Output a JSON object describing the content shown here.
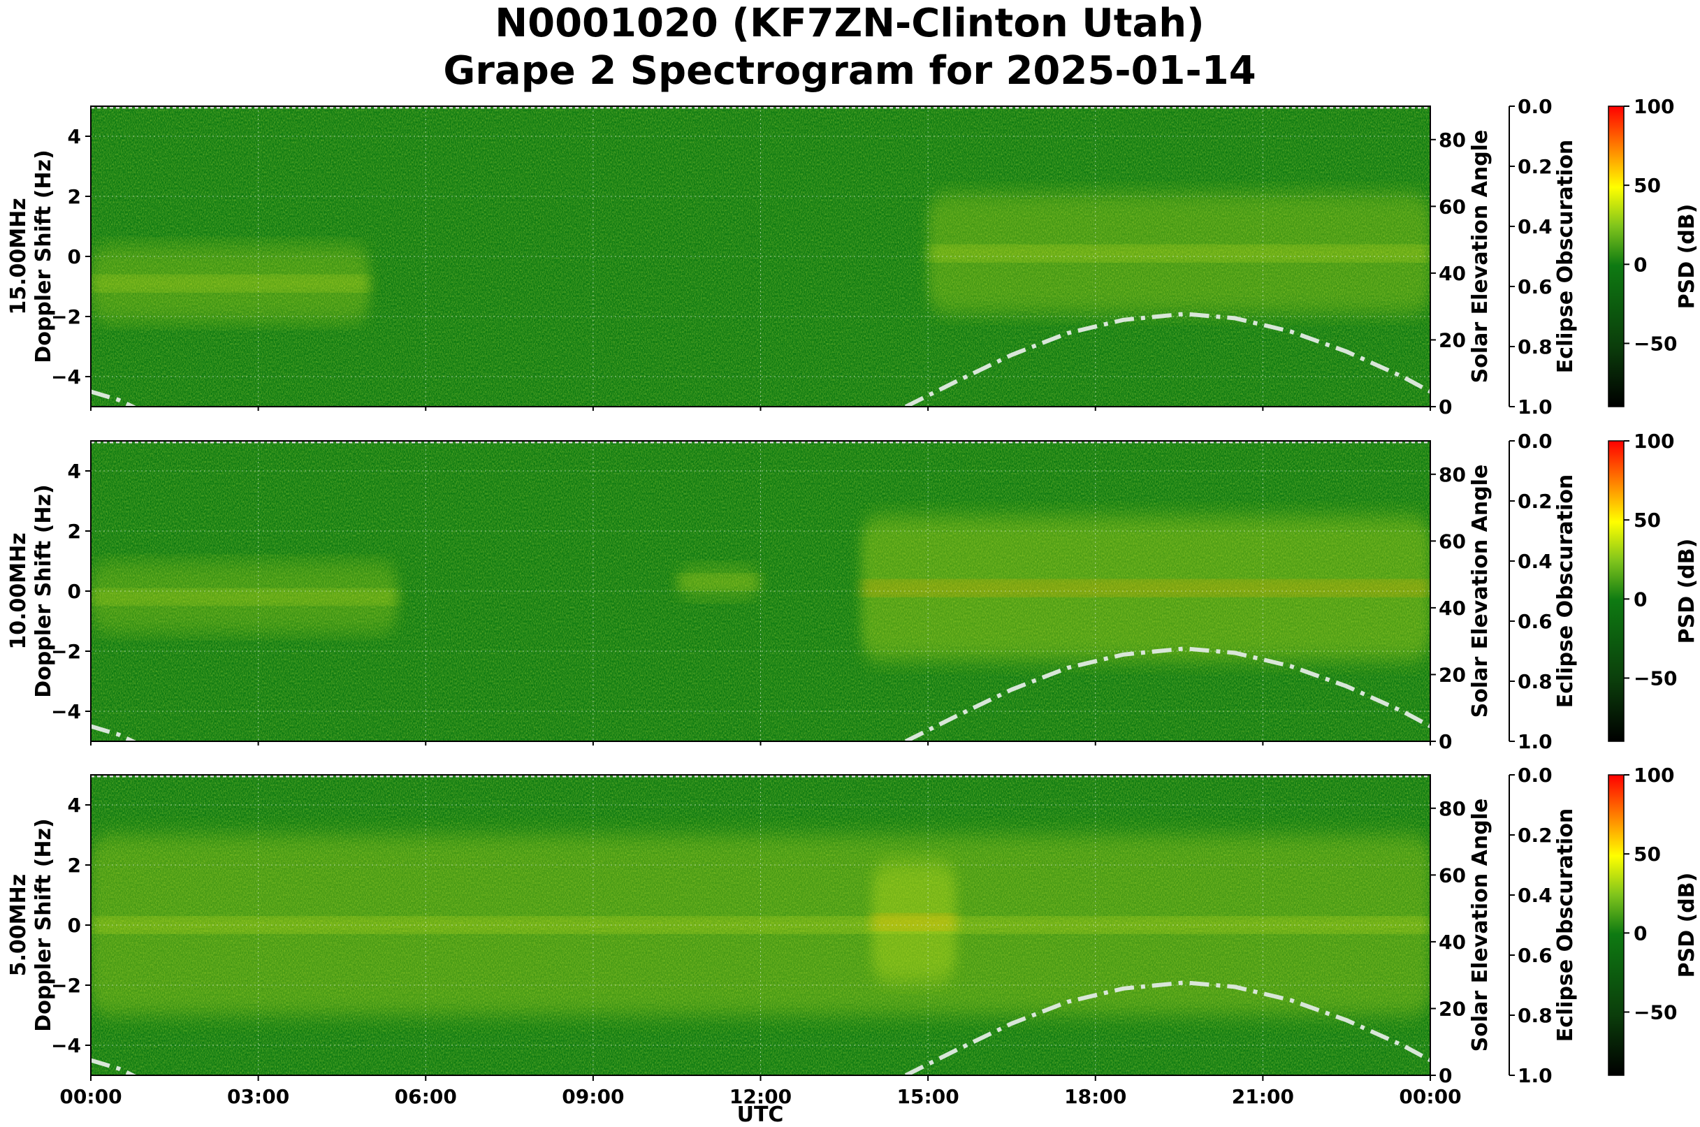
{
  "title": {
    "line1": "N0001020 (KF7ZN-Clinton Utah)",
    "line2": "Grape 2 Spectrogram for 2025-01-14"
  },
  "colors": {
    "spectrogram_base": "#0e7a12",
    "solar_curve": "#d9e6d9",
    "colormap": [
      "#000000",
      "#0b3d0b",
      "#0e7a12",
      "#7fc41c",
      "#ffff00",
      "#ff7a00",
      "#ff0000"
    ]
  },
  "chart_data": [
    {
      "type": "heatmap",
      "band": "15.00MHz",
      "ylabel": "15.00MHz\nDoppler Shift (Hz)",
      "ylim": [
        -5,
        5
      ],
      "yticks": [
        "4",
        "2",
        "0",
        "−2",
        "−4"
      ],
      "y2label": "Solar Elevation Angle",
      "y2lim": [
        0,
        90
      ],
      "y2ticks": [
        "80",
        "60",
        "40",
        "20",
        "0"
      ],
      "y3label": "Eclipse Obscuration",
      "y3ticks": [
        "0.0",
        "0.2",
        "0.4",
        "0.6",
        "0.8",
        "1.0"
      ],
      "clabel": "PSD (dB)",
      "cticks": [
        "100",
        "50",
        "0",
        "−50"
      ],
      "clim": [
        -90,
        100
      ],
      "grid": true,
      "activity": [
        {
          "t0": 0.0,
          "t1": 5.0,
          "f": -0.9,
          "spread": 1.3,
          "level": 0.75
        },
        {
          "t0": 15.0,
          "t1": 24.0,
          "f": 0.1,
          "spread": 2.0,
          "level": 0.8
        }
      ]
    },
    {
      "type": "heatmap",
      "band": "10.00MHz",
      "ylabel": "10.00MHz\nDoppler Shift (Hz)",
      "ylim": [
        -5,
        5
      ],
      "yticks": [
        "4",
        "2",
        "0",
        "−2",
        "−4"
      ],
      "y2label": "Solar Elevation Angle",
      "y2lim": [
        0,
        90
      ],
      "y2ticks": [
        "80",
        "60",
        "40",
        "20",
        "0"
      ],
      "y3label": "Eclipse Obscuration",
      "y3ticks": [
        "0.0",
        "0.2",
        "0.4",
        "0.6",
        "0.8",
        "1.0"
      ],
      "clabel": "PSD (dB)",
      "cticks": [
        "100",
        "50",
        "0",
        "−50"
      ],
      "clim": [
        -90,
        100
      ],
      "grid": true,
      "activity": [
        {
          "t0": 0.0,
          "t1": 5.5,
          "f": -0.2,
          "spread": 1.2,
          "level": 0.7
        },
        {
          "t0": 10.5,
          "t1": 12.0,
          "f": 0.3,
          "spread": 0.6,
          "level": 0.6
        },
        {
          "t0": 13.8,
          "t1": 24.0,
          "f": 0.1,
          "spread": 2.4,
          "level": 0.95
        }
      ]
    },
    {
      "type": "heatmap",
      "band": "5.00MHz",
      "ylabel": "5.00MHz\nDoppler Shift (Hz)",
      "ylim": [
        -5,
        5
      ],
      "yticks": [
        "4",
        "2",
        "0",
        "−2",
        "−4"
      ],
      "y2label": "Solar Elevation Angle",
      "y2lim": [
        0,
        90
      ],
      "y2ticks": [
        "80",
        "60",
        "40",
        "20",
        "0"
      ],
      "y3label": "Eclipse Obscuration",
      "y3ticks": [
        "0.0",
        "0.2",
        "0.4",
        "0.6",
        "0.8",
        "1.0"
      ],
      "clabel": "PSD (dB)",
      "cticks": [
        "100",
        "50",
        "0",
        "−50"
      ],
      "clim": [
        -90,
        100
      ],
      "grid": true,
      "xlabel": "UTC",
      "activity": [
        {
          "t0": 0.0,
          "t1": 24.0,
          "f": 0.0,
          "spread": 3.0,
          "level": 0.85
        },
        {
          "t0": 14.0,
          "t1": 15.5,
          "f": 0.1,
          "spread": 2.0,
          "level": 1.0
        }
      ]
    }
  ],
  "xaxis": {
    "xlim_hours": [
      0,
      24
    ],
    "ticks": [
      "00:00",
      "03:00",
      "06:00",
      "09:00",
      "12:00",
      "15:00",
      "18:00",
      "21:00",
      "00:00"
    ],
    "tick_hours": [
      0,
      3,
      6,
      9,
      12,
      15,
      18,
      21,
      24
    ],
    "label": "UTC"
  },
  "solar_elevation": {
    "unit": "degrees",
    "hours": [
      0,
      0.5,
      1.0,
      14.6,
      15.5,
      16.5,
      17.5,
      18.5,
      19.6,
      20.5,
      21.5,
      22.5,
      23.5,
      24.0
    ],
    "values": [
      4.5,
      2.0,
      -2.0,
      0.0,
      7.5,
      15.5,
      22.0,
      26.0,
      27.8,
      26.5,
      22.5,
      16.5,
      9.0,
      4.5
    ]
  }
}
